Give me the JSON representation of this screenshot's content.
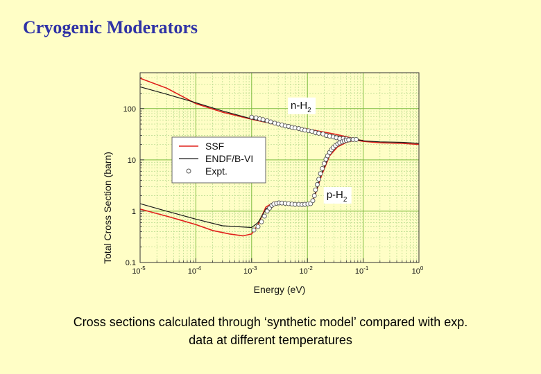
{
  "slide": {
    "title": "Cryogenic Moderators",
    "caption_line1": "Cross sections calculated through ‘synthetic model’ compared with exp.",
    "caption_line2": "data at different temperatures"
  },
  "colors": {
    "background": "#fffec6",
    "title": "#2f32a6",
    "grid_major": "#7bbb3d",
    "grid_minor": "#b4d88a",
    "ssf": "#e0201b",
    "endf": "#1a1a1a",
    "expt": "#555555"
  },
  "chart_data": {
    "type": "line",
    "xscale": "log",
    "yscale": "log",
    "xlim": [
      1e-05,
      1
    ],
    "ylim": [
      0.1,
      500
    ],
    "xlabel": "Energy (eV)",
    "ylabel": "Total Cross Section (barn)",
    "x_ticks": [
      {
        "value": 1e-05,
        "base": "10",
        "exp": "-5"
      },
      {
        "value": 0.0001,
        "base": "10",
        "exp": "-4"
      },
      {
        "value": 0.001,
        "base": "10",
        "exp": "-3"
      },
      {
        "value": 0.01,
        "base": "10",
        "exp": "-2"
      },
      {
        "value": 0.1,
        "base": "10",
        "exp": "-1"
      },
      {
        "value": 1,
        "base": "10",
        "exp": "0"
      }
    ],
    "y_ticks": [
      {
        "value": 0.1,
        "label": "0.1"
      },
      {
        "value": 1,
        "label": "1"
      },
      {
        "value": 10,
        "label": "10"
      },
      {
        "value": 100,
        "label": "100"
      }
    ],
    "legend": {
      "placement": "center-left",
      "entries": [
        {
          "label": "SSF",
          "style": "line",
          "color": "#e0201b"
        },
        {
          "label": "ENDF/B-VI",
          "style": "line",
          "color": "#1a1a1a"
        },
        {
          "label": "Expt.",
          "style": "circle",
          "color": "#555555"
        }
      ]
    },
    "annotations": [
      {
        "base": "n-H",
        "sub": "2",
        "x": 0.005,
        "y": 100
      },
      {
        "base": "p-H",
        "sub": "2",
        "x": 0.022,
        "y": 1.8
      }
    ],
    "series": [
      {
        "name": "SSF n-H2",
        "kind": "line",
        "color": "#e0201b",
        "x": [
          1e-05,
          3e-05,
          0.0001,
          0.0003,
          0.001,
          0.003,
          0.01,
          0.03,
          0.06,
          0.08,
          0.1,
          0.2,
          0.5,
          1
        ],
        "y": [
          390,
          250,
          125,
          85,
          62,
          48,
          40,
          32,
          27,
          24,
          23,
          21.5,
          21,
          20
        ]
      },
      {
        "name": "ENDF n-H2",
        "kind": "line",
        "color": "#1a1a1a",
        "x": [
          1e-05,
          3e-05,
          0.0001,
          0.0003,
          0.001,
          0.003,
          0.01,
          0.03,
          0.06,
          0.08,
          0.1,
          0.2,
          0.5,
          1
        ],
        "y": [
          265,
          190,
          130,
          90,
          63,
          48,
          38,
          30,
          26,
          25,
          23.5,
          22.5,
          22,
          21
        ]
      },
      {
        "name": "SSF p-H2",
        "kind": "line",
        "color": "#e0201b",
        "x": [
          1e-05,
          3e-05,
          0.0001,
          0.0002,
          0.0004,
          0.0007,
          0.001,
          0.0013,
          0.0018,
          0.0025,
          0.0035,
          0.005,
          0.008,
          0.012,
          0.014,
          0.018,
          0.025,
          0.035,
          0.05,
          0.07,
          0.1
        ],
        "y": [
          1.1,
          0.8,
          0.55,
          0.42,
          0.36,
          0.33,
          0.36,
          0.55,
          1.2,
          1.5,
          1.5,
          1.4,
          1.35,
          1.4,
          2.2,
          5,
          12,
          18,
          22,
          24,
          24
        ]
      },
      {
        "name": "ENDF p-H2",
        "kind": "line",
        "color": "#1a1a1a",
        "x": [
          1e-05,
          3e-05,
          0.0001,
          0.0003,
          0.001,
          0.0013,
          0.0018,
          0.0025,
          0.004,
          0.008,
          0.012,
          0.014,
          0.018,
          0.025,
          0.035,
          0.05,
          0.07,
          0.1
        ],
        "y": [
          1.4,
          1.0,
          0.7,
          0.52,
          0.48,
          0.6,
          1.1,
          1.45,
          1.45,
          1.35,
          1.4,
          2.3,
          5.5,
          13,
          19,
          23,
          24.5,
          24
        ]
      },
      {
        "name": "Expt. n-H2",
        "kind": "points",
        "color": "#555555",
        "x": [
          0.001,
          0.0012,
          0.0014,
          0.0016,
          0.0019,
          0.0022,
          0.0026,
          0.003,
          0.0035,
          0.004,
          0.0046,
          0.0053,
          0.006,
          0.007,
          0.008,
          0.009,
          0.0105,
          0.012,
          0.014,
          0.016,
          0.019,
          0.022,
          0.025,
          0.029,
          0.033,
          0.038,
          0.044,
          0.05,
          0.058,
          0.066,
          0.075
        ],
        "y": [
          68,
          66,
          63,
          61,
          58,
          55,
          52,
          50,
          48,
          46,
          45,
          43,
          42,
          41,
          39,
          38,
          37,
          36,
          34,
          33,
          32,
          30,
          29,
          28,
          27,
          26,
          26,
          25.5,
          25,
          25,
          25
        ]
      },
      {
        "name": "Expt. p-H2",
        "kind": "points",
        "color": "#555555",
        "x": [
          0.0011,
          0.0013,
          0.0015,
          0.0017,
          0.0019,
          0.0021,
          0.0023,
          0.0025,
          0.0028,
          0.0031,
          0.0035,
          0.004,
          0.0046,
          0.0053,
          0.006,
          0.007,
          0.008,
          0.009,
          0.0102,
          0.0114,
          0.0125,
          0.0133,
          0.014,
          0.015,
          0.016,
          0.0172,
          0.0185,
          0.02,
          0.0215,
          0.023,
          0.025,
          0.027,
          0.029,
          0.032,
          0.035,
          0.038,
          0.042,
          0.046,
          0.05,
          0.055
        ],
        "y": [
          0.43,
          0.5,
          0.62,
          0.8,
          1.0,
          1.15,
          1.3,
          1.38,
          1.42,
          1.45,
          1.44,
          1.42,
          1.4,
          1.38,
          1.36,
          1.36,
          1.35,
          1.36,
          1.38,
          1.4,
          1.6,
          2.0,
          2.6,
          3.3,
          4.2,
          5.4,
          6.8,
          8.5,
          10.3,
          12,
          14,
          15.8,
          17.3,
          19,
          20.5,
          21.5,
          22.5,
          23.3,
          24,
          24.5
        ]
      }
    ]
  }
}
